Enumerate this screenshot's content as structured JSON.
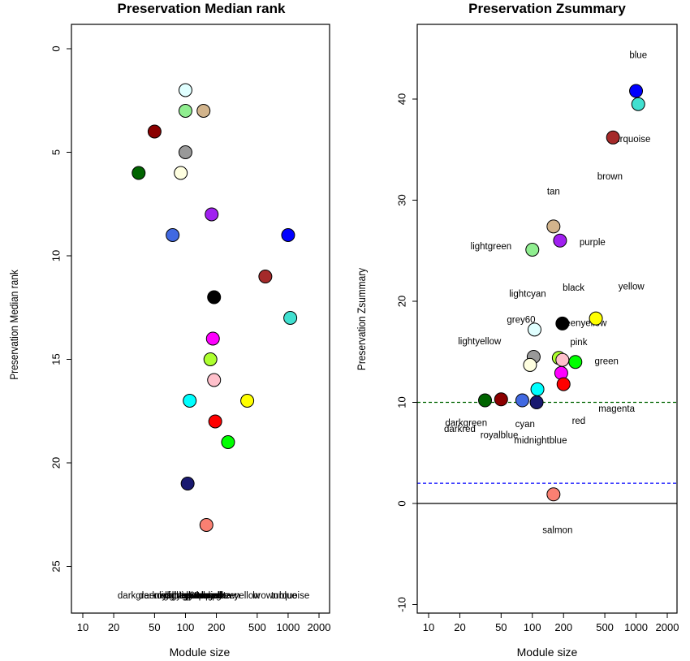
{
  "chart_data": [
    {
      "type": "scatter",
      "title": "Preservation Median rank",
      "xlabel": "Module size",
      "ylabel": "Preservation Median rank",
      "x_scale": "log",
      "x_ticks": [
        10,
        20,
        50,
        100,
        200,
        500,
        1000,
        2000
      ],
      "y_ticks": [
        0,
        5,
        10,
        15,
        20,
        25
      ],
      "y_reversed": true,
      "ylim": [
        27,
        -2
      ],
      "bottom_labels_overlapping": true,
      "points": [
        {
          "module": "lightcyan",
          "color": "#E0FFFF",
          "x": 100,
          "y": 2
        },
        {
          "module": "lightgreen",
          "color": "#90EE90",
          "x": 100,
          "y": 3
        },
        {
          "module": "tan",
          "color": "#D2B48C",
          "x": 150,
          "y": 3
        },
        {
          "module": "darkred",
          "color": "#8B0000",
          "x": 50,
          "y": 4
        },
        {
          "module": "grey60",
          "color": "#999999",
          "x": 100,
          "y": 5
        },
        {
          "module": "darkgreen",
          "color": "#006400",
          "x": 35,
          "y": 6
        },
        {
          "module": "lightyellow",
          "color": "#FFFFE0",
          "x": 90,
          "y": 6
        },
        {
          "module": "purple",
          "color": "#A020F0",
          "x": 180,
          "y": 8
        },
        {
          "module": "royalblue",
          "color": "#4169E1",
          "x": 75,
          "y": 9
        },
        {
          "module": "blue",
          "color": "#0000FF",
          "x": 1000,
          "y": 9
        },
        {
          "module": "brown",
          "color": "#A52A2A",
          "x": 600,
          "y": 11
        },
        {
          "module": "black",
          "color": "#000000",
          "x": 190,
          "y": 12
        },
        {
          "module": "turquoise",
          "color": "#40E0D0",
          "x": 1050,
          "y": 13
        },
        {
          "module": "magenta",
          "color": "#FF00FF",
          "x": 185,
          "y": 14
        },
        {
          "module": "greenyellow",
          "color": "#ADFF2F",
          "x": 175,
          "y": 15
        },
        {
          "module": "pink",
          "color": "#FFC0CB",
          "x": 190,
          "y": 16
        },
        {
          "module": "cyan",
          "color": "#00FFFF",
          "x": 110,
          "y": 17
        },
        {
          "module": "yellow",
          "color": "#FFFF00",
          "x": 400,
          "y": 17
        },
        {
          "module": "red",
          "color": "#FF0000",
          "x": 195,
          "y": 18
        },
        {
          "module": "green",
          "color": "#00FF00",
          "x": 260,
          "y": 19
        },
        {
          "module": "midnightblue",
          "color": "#191970",
          "x": 105,
          "y": 21
        },
        {
          "module": "salmon",
          "color": "#FA8072",
          "x": 160,
          "y": 23
        }
      ]
    },
    {
      "type": "scatter",
      "title": "Preservation Zsummary",
      "xlabel": "Module size",
      "ylabel": "Preservation Zsummary",
      "x_scale": "log",
      "x_ticks": [
        10,
        20,
        50,
        100,
        200,
        500,
        1000,
        2000
      ],
      "y_ticks": [
        -10,
        0,
        10,
        20,
        30,
        40
      ],
      "ylim": [
        -11,
        47
      ],
      "hlines": [
        {
          "y": 0,
          "color": "#000000",
          "style": "solid"
        },
        {
          "y": 2,
          "color": "#0000FF",
          "style": "dashed"
        },
        {
          "y": 10,
          "color": "#006400",
          "style": "dashed"
        }
      ],
      "points": [
        {
          "module": "blue",
          "color": "#0000FF",
          "x": 1000,
          "y": 40.8
        },
        {
          "module": "turquoise",
          "color": "#40E0D0",
          "x": 1050,
          "y": 39.5
        },
        {
          "module": "brown",
          "color": "#A52A2A",
          "x": 600,
          "y": 36.2
        },
        {
          "module": "tan",
          "color": "#D2B48C",
          "x": 160,
          "y": 27.4
        },
        {
          "module": "purple",
          "color": "#A020F0",
          "x": 185,
          "y": 26
        },
        {
          "module": "lightgreen",
          "color": "#90EE90",
          "x": 100,
          "y": 25.1
        },
        {
          "module": "yellow",
          "color": "#FFFF00",
          "x": 410,
          "y": 18.3
        },
        {
          "module": "black",
          "color": "#000000",
          "x": 195,
          "y": 17.8
        },
        {
          "module": "lightcyan",
          "color": "#E0FFFF",
          "x": 105,
          "y": 17.2
        },
        {
          "module": "grey60",
          "color": "#999999",
          "x": 103,
          "y": 14.5
        },
        {
          "module": "greenyellow",
          "color": "#ADFF2F",
          "x": 180,
          "y": 14.4
        },
        {
          "module": "pink",
          "color": "#FFC0CB",
          "x": 195,
          "y": 14.2
        },
        {
          "module": "green",
          "color": "#00FF00",
          "x": 260,
          "y": 14
        },
        {
          "module": "lightyellow",
          "color": "#FFFFE0",
          "x": 95,
          "y": 13.7
        },
        {
          "module": "magenta",
          "color": "#FF00FF",
          "x": 190,
          "y": 12.9
        },
        {
          "module": "red",
          "color": "#FF0000",
          "x": 200,
          "y": 11.8
        },
        {
          "module": "cyan",
          "color": "#00FFFF",
          "x": 112,
          "y": 11.3
        },
        {
          "module": "darkgreen",
          "color": "#006400",
          "x": 35,
          "y": 10.2
        },
        {
          "module": "darkred",
          "color": "#8B0000",
          "x": 50,
          "y": 10.3
        },
        {
          "module": "royalblue",
          "color": "#4169E1",
          "x": 80,
          "y": 10.2
        },
        {
          "module": "midnightblue",
          "color": "#191970",
          "x": 110,
          "y": 10
        },
        {
          "module": "salmon",
          "color": "#FA8072",
          "x": 160,
          "y": 0.9
        }
      ],
      "labels": [
        {
          "text": "blue",
          "x": 1050,
          "y": 44.3
        },
        {
          "text": "turquoise",
          "x": 900,
          "y": 36.0
        },
        {
          "text": "brown",
          "x": 560,
          "y": 32.3
        },
        {
          "text": "tan",
          "x": 160,
          "y": 30.8
        },
        {
          "text": "purple",
          "x": 380,
          "y": 25.8
        },
        {
          "text": "lightgreen",
          "x": 40,
          "y": 25.4
        },
        {
          "text": "lightcyan",
          "x": 90,
          "y": 20.7
        },
        {
          "text": "black",
          "x": 250,
          "y": 21.3
        },
        {
          "text": "yellow",
          "x": 900,
          "y": 21.4
        },
        {
          "text": "grey60",
          "x": 78,
          "y": 18.1
        },
        {
          "text": "greenyellow",
          "x": 300,
          "y": 17.8
        },
        {
          "text": "lightyellow",
          "x": 31,
          "y": 16.0
        },
        {
          "text": "pink",
          "x": 280,
          "y": 15.9
        },
        {
          "text": "green",
          "x": 520,
          "y": 14.0
        },
        {
          "text": "magenta",
          "x": 650,
          "y": 9.3
        },
        {
          "text": "red",
          "x": 280,
          "y": 8.1
        },
        {
          "text": "darkgreen",
          "x": 23,
          "y": 7.9
        },
        {
          "text": "cyan",
          "x": 85,
          "y": 7.8
        },
        {
          "text": "darkred",
          "x": 20,
          "y": 7.3
        },
        {
          "text": "royalblue",
          "x": 48,
          "y": 6.7
        },
        {
          "text": "midnightblue",
          "x": 120,
          "y": 6.2
        },
        {
          "text": "salmon",
          "x": 175,
          "y": -2.7
        }
      ]
    }
  ]
}
